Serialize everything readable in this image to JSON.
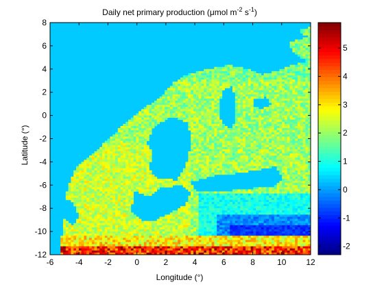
{
  "chart_data": {
    "type": "heatmap",
    "title": "Daily net primary production (μmol m⁻² s⁻¹)",
    "title_parts": {
      "main": "Daily net primary production (μmol m",
      "sup1": "-2",
      "mid": " s",
      "sup2": "-1",
      "end": ")"
    },
    "xlabel": "Longitude (°)",
    "ylabel": "Latitude (°)",
    "xlim": [
      -6,
      12
    ],
    "ylim": [
      -12,
      8
    ],
    "xticks": [
      "-6",
      "-4",
      "-2",
      "0",
      "2",
      "4",
      "6",
      "8",
      "10",
      "12"
    ],
    "yticks": [
      "8",
      "6",
      "4",
      "2",
      "0",
      "-2",
      "-4",
      "-6",
      "-8",
      "-10",
      "-12"
    ],
    "colormap": "jet",
    "clim": [
      -2.3,
      5.9
    ],
    "colorbar_ticks": [
      "5",
      "4",
      "3",
      "2",
      "1",
      "0",
      "-1",
      "-2"
    ],
    "colors": {
      "background_value": 0.35,
      "ocean": "#0f96ff"
    }
  }
}
